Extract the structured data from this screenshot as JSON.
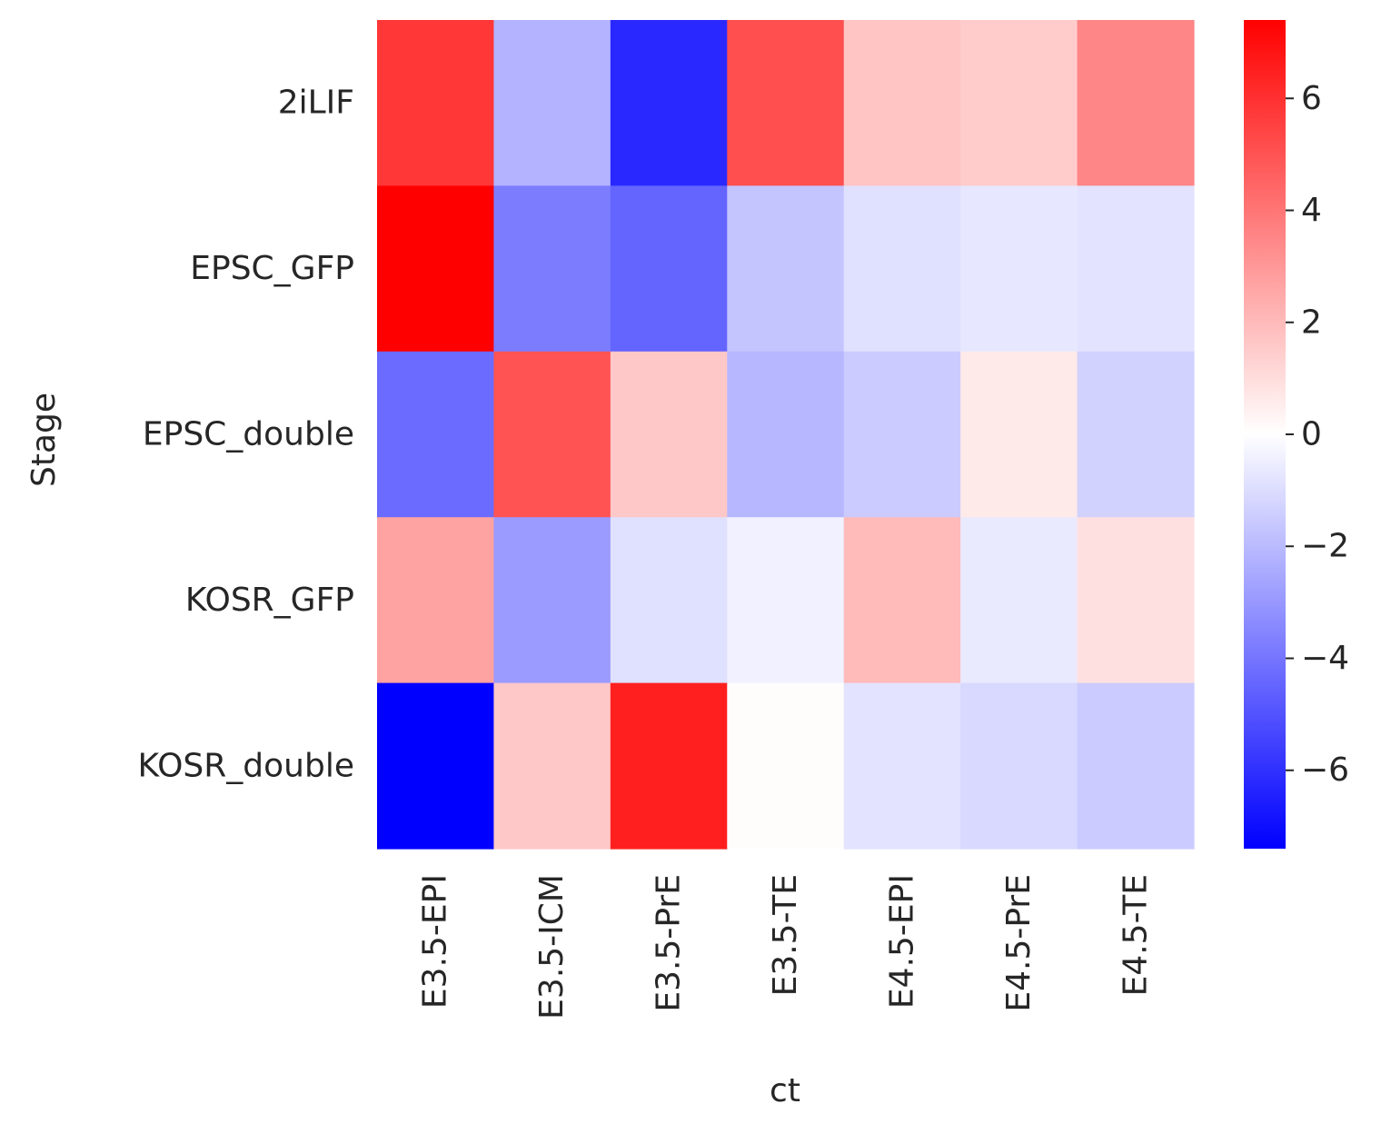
{
  "chart_data": {
    "type": "heatmap",
    "title": "",
    "xlabel": "ct",
    "ylabel": "Stage",
    "x_categories": [
      "E3.5-EPI",
      "E3.5-ICM",
      "E3.5-PrE",
      "E3.5-TE",
      "E4.5-EPI",
      "E4.5-PrE",
      "E4.5-TE"
    ],
    "y_categories": [
      "2iLIF",
      "EPSC_GFP",
      "EPSC_double",
      "KOSR_GFP",
      "KOSR_double"
    ],
    "values": [
      [
        5.8,
        -2.2,
        -6.2,
        5.1,
        1.7,
        1.5,
        3.5
      ],
      [
        7.4,
        -3.8,
        -4.5,
        -1.7,
        -0.9,
        -0.7,
        -0.8
      ],
      [
        -4.3,
        5.0,
        1.6,
        -2.1,
        -1.5,
        0.6,
        -1.3
      ],
      [
        2.7,
        -2.9,
        -0.9,
        -0.4,
        2.0,
        -0.6,
        0.9
      ],
      [
        -7.4,
        1.6,
        6.5,
        0.1,
        -0.8,
        -1.1,
        -1.5
      ]
    ],
    "colormap": "bwr",
    "color_low": "#0000ff",
    "color_mid": "#ffffff",
    "color_high": "#ff0000",
    "vmin": -7.4,
    "vmax": 7.4,
    "colorbar_ticks": [
      {
        "value": 6,
        "label": "6"
      },
      {
        "value": 4,
        "label": "4"
      },
      {
        "value": 2,
        "label": "2"
      },
      {
        "value": 0,
        "label": "0"
      },
      {
        "value": -2,
        "label": "−2"
      },
      {
        "value": -4,
        "label": "−4"
      },
      {
        "value": -6,
        "label": "−6"
      }
    ]
  }
}
